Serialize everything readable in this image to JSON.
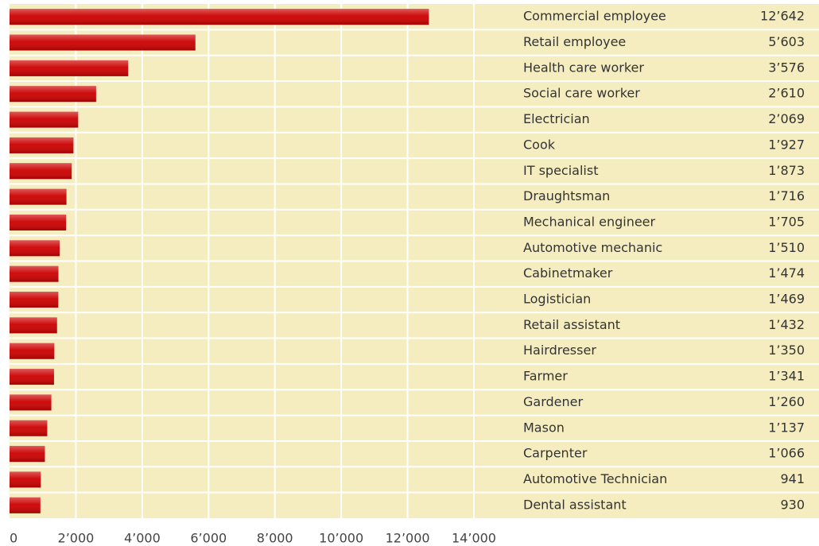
{
  "chart_data": {
    "type": "bar",
    "orientation": "horizontal",
    "color": "#cc0000",
    "categories": [
      "Commercial employee",
      "Retail employee",
      "Health care worker",
      "Social care worker",
      "Electrician",
      "Cook",
      "IT specialist",
      "Draughtsman",
      "Mechanical engineer",
      "Automotive mechanic",
      "Cabinetmaker",
      "Logistician",
      "Retail assistant",
      "Hairdresser",
      "Farmer",
      "Gardener",
      "Mason",
      "Carpenter",
      "Automotive Technician",
      "Dental assistant"
    ],
    "values": [
      12642,
      5603,
      3576,
      2610,
      2069,
      1927,
      1873,
      1716,
      1705,
      1510,
      1474,
      1469,
      1432,
      1350,
      1341,
      1260,
      1137,
      1066,
      941,
      930
    ],
    "value_labels": [
      "12’642",
      "5’603",
      "3’576",
      "2’610",
      "2’069",
      "1’927",
      "1’873",
      "1’716",
      "1’705",
      "1’510",
      "1’474",
      "1’469",
      "1’432",
      "1’350",
      "1’341",
      "1’260",
      "1’137",
      "1’066",
      "941",
      "930"
    ],
    "xlim": [
      0,
      14000
    ],
    "xticks": [
      0,
      {
        "value": 2000,
        "label": "2’000"
      },
      {
        "value": 4000,
        "label": "4’000"
      },
      {
        "value": 6000,
        "label": "6’000"
      },
      {
        "value": 8000,
        "label": "8’000"
      },
      {
        "value": 10000,
        "label": "10’000"
      },
      {
        "value": 12000,
        "label": "12’000"
      },
      {
        "value": 14000,
        "label": "14’000"
      }
    ],
    "grid": true
  }
}
